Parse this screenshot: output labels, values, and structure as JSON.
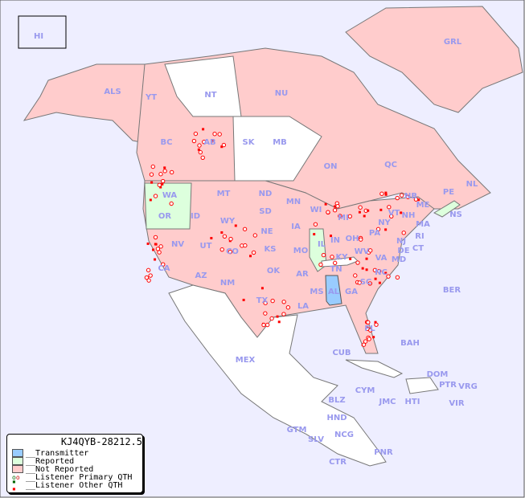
{
  "legend": {
    "title": "KJ4QYB-28212.5",
    "items": [
      {
        "label": "__Transmitter",
        "color": "#99ccff"
      },
      {
        "label": "__Reported",
        "color": "#ddffdd"
      },
      {
        "label": "__Not Reported",
        "color": "#ffcccc"
      },
      {
        "label": "__Listener Primary QTH",
        "color": "#ff0000"
      },
      {
        "label": "__Listener Other QTH",
        "color": "#ff0000"
      }
    ]
  },
  "colors": {
    "ocean": "#eeeeff",
    "transmitter": "#99ccff",
    "reported": "#ddffdd",
    "not_reported": "#ffcccc",
    "no_data": "#ffffff",
    "label": "#9999ee",
    "spot": "#ff0000"
  },
  "regions": [
    {
      "code": "HI",
      "status": "not_reported"
    },
    {
      "code": "ALS",
      "status": "not_reported"
    },
    {
      "code": "YT",
      "status": "not_reported"
    },
    {
      "code": "NT",
      "status": "none"
    },
    {
      "code": "NU",
      "status": "not_reported"
    },
    {
      "code": "GRL",
      "status": "not_reported"
    },
    {
      "code": "BC",
      "status": "not_reported"
    },
    {
      "code": "AB",
      "status": "not_reported"
    },
    {
      "code": "SK",
      "status": "none"
    },
    {
      "code": "MB",
      "status": "none"
    },
    {
      "code": "ON",
      "status": "not_reported"
    },
    {
      "code": "QC",
      "status": "not_reported"
    },
    {
      "code": "NL",
      "status": "not_reported"
    },
    {
      "code": "NB",
      "status": "not_reported"
    },
    {
      "code": "PE",
      "status": "not_reported"
    },
    {
      "code": "NS",
      "status": "reported"
    },
    {
      "code": "WA",
      "status": "reported"
    },
    {
      "code": "OR",
      "status": "reported"
    },
    {
      "code": "ID",
      "status": "not_reported"
    },
    {
      "code": "MT",
      "status": "not_reported"
    },
    {
      "code": "ND",
      "status": "none"
    },
    {
      "code": "MN",
      "status": "not_reported"
    },
    {
      "code": "WI",
      "status": "not_reported"
    },
    {
      "code": "MI",
      "status": "not_reported"
    },
    {
      "code": "SD",
      "status": "not_reported"
    },
    {
      "code": "WY",
      "status": "not_reported"
    },
    {
      "code": "NE",
      "status": "not_reported"
    },
    {
      "code": "IA",
      "status": "not_reported"
    },
    {
      "code": "IL",
      "status": "reported"
    },
    {
      "code": "IN",
      "status": "not_reported"
    },
    {
      "code": "OH",
      "status": "not_reported"
    },
    {
      "code": "PA",
      "status": "not_reported"
    },
    {
      "code": "NY",
      "status": "not_reported"
    },
    {
      "code": "VT",
      "status": "not_reported"
    },
    {
      "code": "NH",
      "status": "not_reported"
    },
    {
      "code": "ME",
      "status": "not_reported"
    },
    {
      "code": "MA",
      "status": "not_reported"
    },
    {
      "code": "CT",
      "status": "not_reported"
    },
    {
      "code": "RI",
      "status": "not_reported"
    },
    {
      "code": "NJ",
      "status": "not_reported"
    },
    {
      "code": "DE",
      "status": "not_reported"
    },
    {
      "code": "MD",
      "status": "not_reported"
    },
    {
      "code": "WV",
      "status": "not_reported"
    },
    {
      "code": "VA",
      "status": "not_reported"
    },
    {
      "code": "KY",
      "status": "none"
    },
    {
      "code": "TN",
      "status": "not_reported"
    },
    {
      "code": "NC",
      "status": "not_reported"
    },
    {
      "code": "SC",
      "status": "not_reported"
    },
    {
      "code": "GA",
      "status": "not_reported"
    },
    {
      "code": "AL",
      "status": "transmitter"
    },
    {
      "code": "MS",
      "status": "not_reported"
    },
    {
      "code": "LA",
      "status": "not_reported"
    },
    {
      "code": "AR",
      "status": "not_reported"
    },
    {
      "code": "MO",
      "status": "not_reported"
    },
    {
      "code": "KS",
      "status": "not_reported"
    },
    {
      "code": "OK",
      "status": "not_reported"
    },
    {
      "code": "TX",
      "status": "not_reported"
    },
    {
      "code": "NM",
      "status": "not_reported"
    },
    {
      "code": "AZ",
      "status": "not_reported"
    },
    {
      "code": "CO",
      "status": "not_reported"
    },
    {
      "code": "UT",
      "status": "not_reported"
    },
    {
      "code": "NV",
      "status": "not_reported"
    },
    {
      "code": "CA",
      "status": "not_reported"
    },
    {
      "code": "FL",
      "status": "not_reported"
    },
    {
      "code": "BER",
      "status": "none"
    },
    {
      "code": "BAH",
      "status": "none"
    },
    {
      "code": "CUB",
      "status": "none"
    },
    {
      "code": "DOM",
      "status": "none"
    },
    {
      "code": "PTR",
      "status": "not_reported"
    },
    {
      "code": "VRG",
      "status": "none"
    },
    {
      "code": "VIR",
      "status": "none"
    },
    {
      "code": "HTI",
      "status": "none"
    },
    {
      "code": "JMC",
      "status": "none"
    },
    {
      "code": "CYM",
      "status": "none"
    },
    {
      "code": "MEX",
      "status": "none"
    },
    {
      "code": "BLZ",
      "status": "none"
    },
    {
      "code": "GTM",
      "status": "none"
    },
    {
      "code": "HND",
      "status": "none"
    },
    {
      "code": "SLV",
      "status": "none"
    },
    {
      "code": "NCG",
      "status": "none"
    },
    {
      "code": "CTR",
      "status": "none"
    },
    {
      "code": "PNR",
      "status": "none"
    }
  ]
}
